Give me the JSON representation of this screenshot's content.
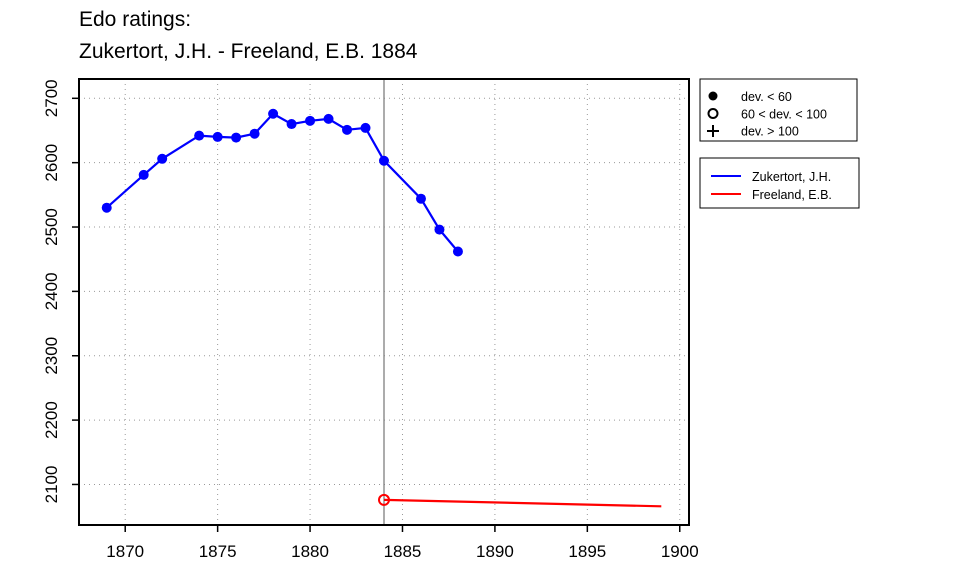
{
  "chart_data": {
    "type": "line",
    "title_lines": [
      "Edo ratings:",
      "Zukertort, J.H. - Freeland, E.B. 1884"
    ],
    "xlabel": "",
    "ylabel": "",
    "xlim": [
      1867.5,
      1900.5
    ],
    "ylim": [
      2037,
      2730
    ],
    "x_ticks": [
      1870,
      1875,
      1880,
      1885,
      1890,
      1895,
      1900
    ],
    "y_ticks": [
      2100,
      2200,
      2300,
      2400,
      2500,
      2600,
      2700
    ],
    "grid": true,
    "grid_style": "dotted",
    "reference_line": {
      "x": 1884,
      "color": "#808080"
    },
    "series": [
      {
        "name": "Zukertort, J.H.",
        "color": "#0000ff",
        "marker": "filled-circle",
        "segments": [
          [
            [
              1869,
              2530
            ],
            [
              1871,
              2581
            ],
            [
              1872,
              2606
            ],
            [
              1874,
              2642
            ],
            [
              1875,
              2640
            ],
            [
              1876,
              2639
            ],
            [
              1877,
              2645
            ],
            [
              1878,
              2676
            ],
            [
              1879,
              2660
            ],
            [
              1880,
              2665
            ],
            [
              1881,
              2668
            ],
            [
              1882,
              2651
            ],
            [
              1883,
              2654
            ],
            [
              1884,
              2603
            ],
            [
              1886,
              2544
            ],
            [
              1887,
              2496
            ],
            [
              1888,
              2462
            ]
          ]
        ]
      },
      {
        "name": "Freeland, E.B.",
        "color": "#ff0000",
        "marker": "open-circle",
        "marker_points": [
          1884
        ],
        "segments": [
          [
            [
              1884,
              2076
            ],
            [
              1899,
              2066
            ]
          ]
        ]
      }
    ],
    "marker_legend": [
      {
        "symbol": "filled-circle",
        "label": "dev. < 60"
      },
      {
        "symbol": "open-circle",
        "label": "60 < dev. < 100"
      },
      {
        "symbol": "plus",
        "label": "dev. > 100"
      }
    ],
    "legend_placement": "right"
  }
}
